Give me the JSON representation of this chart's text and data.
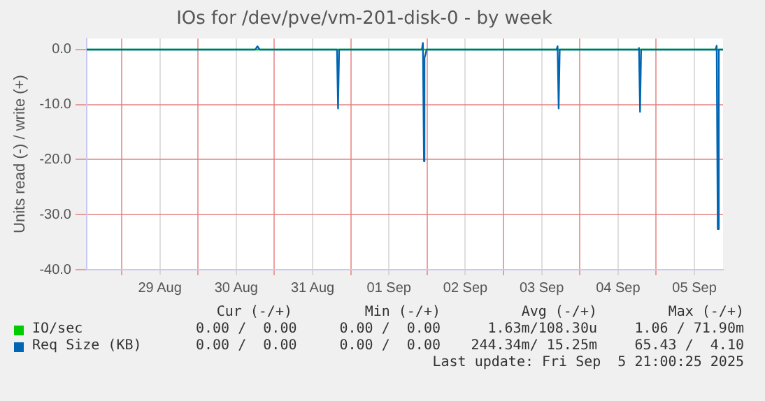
{
  "chart_data": {
    "type": "line",
    "title": "IOs for /dev/pve/vm-201-disk-0 - by week",
    "ylabel": "Units read (-) / write (+)",
    "xlim": [
      "2025-08-28T13:00",
      "2025-09-05T21:00"
    ],
    "xticks": [
      {
        "value": "2025-08-29T00:00",
        "label": null
      },
      {
        "value": "2025-08-29T12:00",
        "label": "29 Aug"
      },
      {
        "value": "2025-08-30T00:00",
        "label": null
      },
      {
        "value": "2025-08-30T12:00",
        "label": "30 Aug"
      },
      {
        "value": "2025-08-31T00:00",
        "label": null
      },
      {
        "value": "2025-08-31T12:00",
        "label": "31 Aug"
      },
      {
        "value": "2025-09-01T00:00",
        "label": null
      },
      {
        "value": "2025-09-01T12:00",
        "label": "01 Sep"
      },
      {
        "value": "2025-09-02T00:00",
        "label": null
      },
      {
        "value": "2025-09-02T12:00",
        "label": "02 Sep"
      },
      {
        "value": "2025-09-03T00:00",
        "label": null
      },
      {
        "value": "2025-09-03T12:00",
        "label": "03 Sep"
      },
      {
        "value": "2025-09-04T00:00",
        "label": null
      },
      {
        "value": "2025-09-04T12:00",
        "label": "04 Sep"
      },
      {
        "value": "2025-09-05T00:00",
        "label": null
      },
      {
        "value": "2025-09-05T12:00",
        "label": "05 Sep"
      }
    ],
    "ylim": [
      -40,
      2
    ],
    "yticks": [
      {
        "value": -40,
        "label": "-40.0"
      },
      {
        "value": -30,
        "label": "-30.0"
      },
      {
        "value": -20,
        "label": "-20.0"
      },
      {
        "value": -10,
        "label": "-10.0"
      },
      {
        "value": 0,
        "label": "0.0"
      }
    ],
    "grid": true,
    "legend": "bottom left",
    "marker": "none",
    "line_style": "solid",
    "series": [
      {
        "name": "Req Size (KB)",
        "color": "#0066b3",
        "x": [
          "2025-08-28T13:00",
          "2025-08-30T18:00",
          "2025-08-30T18:40",
          "2025-08-30T19:20",
          "2025-08-31T19:40",
          "2025-08-31T20:00",
          "2025-08-31T20:20",
          "2025-09-01T22:20",
          "2025-09-01T22:40",
          "2025-09-01T23:00",
          "2025-09-01T23:10",
          "2025-09-01T23:30",
          "2025-09-01T23:50",
          "2025-09-03T16:40",
          "2025-09-03T17:00",
          "2025-09-03T17:20",
          "2025-09-03T17:40",
          "2025-09-04T18:15",
          "2025-09-04T18:35",
          "2025-09-04T18:55",
          "2025-09-04T19:15",
          "2025-09-05T18:40",
          "2025-09-05T19:00",
          "2025-09-05T19:20",
          "2025-09-05T19:40",
          "2025-09-05T21:00"
        ],
        "values": [
          0,
          0,
          0.6,
          0,
          0,
          -10.7,
          0,
          0,
          1.2,
          -20.3,
          -1.5,
          -0.8,
          0,
          0,
          0.6,
          -10.7,
          0,
          0,
          0.3,
          -11.3,
          0,
          0,
          0.7,
          -32.6,
          0,
          0
        ]
      },
      {
        "name": "IO/sec",
        "color": "#00cc00",
        "x": [
          "2025-08-28T13:00",
          "2025-09-05T21:00"
        ],
        "values": [
          0,
          0
        ]
      }
    ],
    "annotations": [
      "Cur (-/+)",
      "Min (-/+)",
      "Avg (-/+)",
      "Max (-/+)",
      "0.00 /  0.00",
      "0.00 /  0.00",
      "244.34m/ 15.25m",
      "65.43 /  4.10",
      "0.00 /  0.00",
      "0.00 /  0.00",
      "1.63m/108.30u",
      "1.06 / 71.90m",
      "Last update: Fri Sep  5 21:00:25 2025"
    ]
  }
}
